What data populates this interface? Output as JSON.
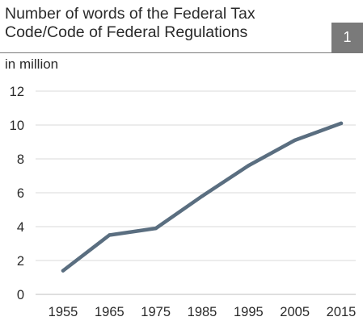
{
  "header": {
    "title_line1": "Number of words of the Federal Tax",
    "title_line2": "Code/Code of Federal Regulations",
    "badge": "1",
    "badge_color": "#7a7a7a"
  },
  "chart_data": {
    "type": "line",
    "title": "Number of words of the Federal Tax Code/Code of Federal Regulations",
    "unit_label": "in million",
    "xlabel": "",
    "ylabel": "",
    "x": [
      "1955",
      "1965",
      "1975",
      "1985",
      "1995",
      "2005",
      "2015"
    ],
    "series": [
      {
        "values": [
          1.4,
          3.5,
          3.9,
          5.8,
          7.6,
          9.1,
          10.1
        ]
      }
    ],
    "ylim": [
      0,
      12
    ],
    "yticks": [
      0,
      2,
      4,
      6,
      8,
      10,
      12
    ],
    "grid": true,
    "legend": "none",
    "line_color": "#5a6e80",
    "grid_color": "#d9d9d9"
  }
}
